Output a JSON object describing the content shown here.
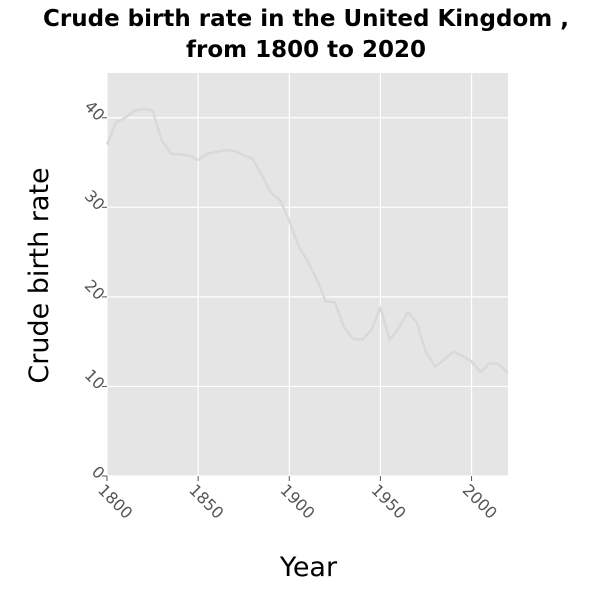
{
  "chart_data": {
    "type": "line",
    "title": "Crude birth rate in the United Kingdom ,",
    "subtitle": "from 1800 to 2020",
    "xlabel": "Year",
    "ylabel": "Crude birth rate",
    "xlim": [
      1800,
      2020
    ],
    "ylim": [
      0,
      45
    ],
    "xticks": [
      1800,
      1850,
      1900,
      1950,
      2000
    ],
    "yticks": [
      0,
      10,
      20,
      30,
      40
    ],
    "xtick_labels": [
      "1800",
      "1850",
      "1900",
      "1950",
      "2000"
    ],
    "ytick_labels": [
      "0",
      "10",
      "20",
      "30",
      "40"
    ],
    "grid": true,
    "legend": "none",
    "colors": {
      "background": "#e5e5e5",
      "grid": "#ffffff",
      "line": "#d9d9d9"
    },
    "series": [
      {
        "x": [
          1800,
          1805,
          1810,
          1815,
          1820,
          1825,
          1830,
          1835,
          1840,
          1845,
          1850,
          1855,
          1860,
          1865,
          1870,
          1875,
          1880,
          1885,
          1890,
          1895,
          1900,
          1905,
          1910,
          1915,
          1920,
          1925,
          1930,
          1935,
          1940,
          1945,
          1950,
          1955,
          1960,
          1965,
          1970,
          1975,
          1980,
          1985,
          1990,
          1995,
          2000,
          2005,
          2010,
          2015,
          2020
        ],
        "y": [
          37,
          39.5,
          40,
          40.8,
          41,
          40.8,
          37.5,
          36,
          35.9,
          35.8,
          35.3,
          36,
          36.2,
          36.4,
          36.3,
          35.8,
          35.4,
          33.6,
          31.6,
          30.8,
          28.5,
          25.7,
          24,
          22,
          19.5,
          19.4,
          16.6,
          15.3,
          15.2,
          16.3,
          18.8,
          15.2,
          16.5,
          18.3,
          17.1,
          13.8,
          12.2,
          13,
          13.9,
          13.4,
          12.8,
          11.6,
          12.6,
          12.5,
          11.5
        ]
      }
    ]
  }
}
